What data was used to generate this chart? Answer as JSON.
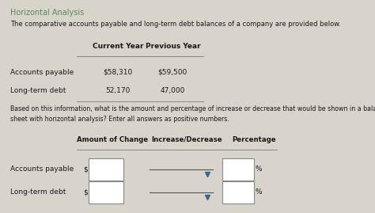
{
  "title": "Horizontal Analysis",
  "subtitle": "The comparative accounts payable and long-term debt balances of a company are provided below.",
  "col_headers": [
    "Current Year",
    "Previous Year"
  ],
  "rows": [
    {
      "label": "Accounts payable",
      "current": "$58,310",
      "previous": "$59,500"
    },
    {
      "label": "Long-term debt",
      "current": "52,170",
      "previous": "47,000"
    }
  ],
  "question": "Based on this information, what is the amount and percentage of increase or decrease that would be shown in a balance\nsheet with horizontal analysis? Enter all answers as positive numbers.",
  "answer_headers": [
    "Amount of Change",
    "Increase/Decrease",
    "Percentage"
  ],
  "answer_rows": [
    {
      "label": "Accounts payable"
    },
    {
      "label": "Long-term debt"
    }
  ],
  "bg_color": "#d8d4cc",
  "title_color": "#5a8a5a",
  "text_color": "#1a1a1a",
  "box_color": "#ffffff",
  "line_color": "#888888",
  "arrow_color": "#336699"
}
